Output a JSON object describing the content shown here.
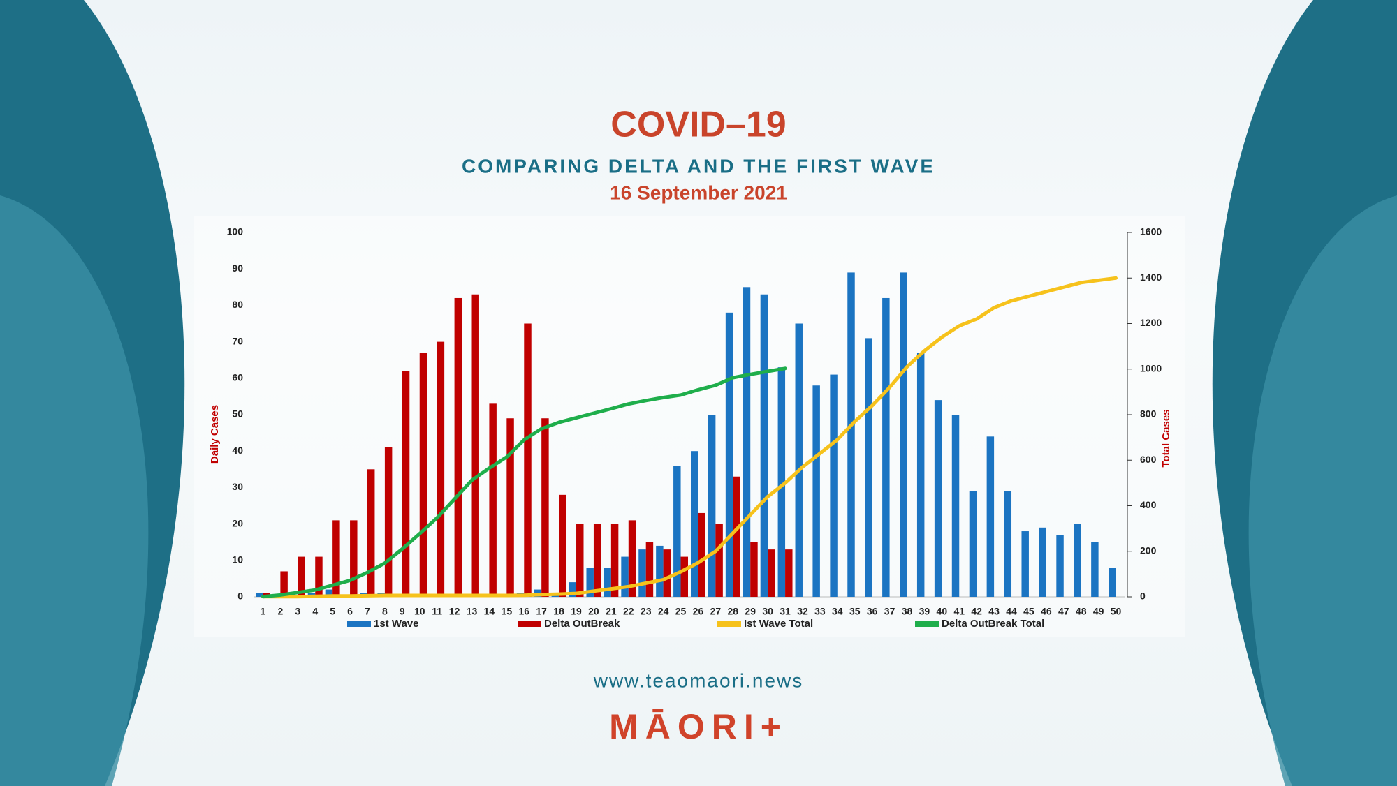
{
  "chart_data": {
    "type": "bar",
    "title": "COVID–19",
    "subtitle": "COMPARING DELTA AND THE FIRST WAVE",
    "date": "16 September 2021",
    "ylabel": "Daily Cases",
    "y2label": "Total Cases",
    "categories": [
      "1",
      "2",
      "3",
      "4",
      "5",
      "6",
      "7",
      "8",
      "9",
      "10",
      "11",
      "12",
      "13",
      "14",
      "15",
      "16",
      "17",
      "18",
      "19",
      "20",
      "21",
      "22",
      "23",
      "24",
      "25",
      "26",
      "27",
      "28",
      "29",
      "30",
      "31",
      "32",
      "33",
      "34",
      "35",
      "36",
      "37",
      "38",
      "39",
      "40",
      "41",
      "42",
      "43",
      "44",
      "45",
      "46",
      "47",
      "48",
      "49",
      "50"
    ],
    "ylim": [
      0,
      100
    ],
    "yticks": [
      0,
      10,
      20,
      30,
      40,
      50,
      60,
      70,
      80,
      90,
      100
    ],
    "y2lim": [
      0,
      1600
    ],
    "y2ticks": [
      0,
      200,
      400,
      600,
      800,
      1000,
      1200,
      1400,
      1600
    ],
    "grid": false,
    "legend": "bottom",
    "series": [
      {
        "name": "1st Wave",
        "type": "bar",
        "color": "#1b74c2",
        "values": [
          1,
          0,
          0,
          1,
          2,
          0,
          1,
          1,
          0,
          0,
          0,
          0,
          0,
          0,
          0,
          1,
          2,
          1,
          4,
          8,
          8,
          11,
          13,
          14,
          36,
          40,
          50,
          78,
          85,
          83,
          63,
          75,
          58,
          61,
          89,
          71,
          82,
          89,
          67,
          54,
          50,
          29,
          44,
          29,
          18,
          19,
          17,
          20,
          15,
          8
        ]
      },
      {
        "name": "Delta OutBreak",
        "type": "bar",
        "color": "#c00000",
        "values": [
          1,
          7,
          11,
          11,
          21,
          21,
          35,
          41,
          62,
          67,
          70,
          82,
          83,
          53,
          49,
          75,
          49,
          28,
          20,
          20,
          20,
          21,
          15,
          13,
          11,
          23,
          20,
          33,
          15,
          13,
          13,
          null,
          null,
          null,
          null,
          null,
          null,
          null,
          null,
          null,
          null,
          null,
          null,
          null,
          null,
          null,
          null,
          null,
          null,
          null
        ]
      },
      {
        "name": "Ist Wave Total",
        "type": "line",
        "axis": "y2",
        "color": "#f6c21c",
        "values": [
          1,
          1,
          1,
          2,
          4,
          4,
          5,
          6,
          6,
          6,
          6,
          6,
          6,
          6,
          6,
          7,
          10,
          12,
          15,
          25,
          35,
          45,
          60,
          75,
          110,
          150,
          200,
          280,
          360,
          440,
          500,
          570,
          630,
          690,
          770,
          840,
          920,
          1010,
          1080,
          1140,
          1190,
          1220,
          1270,
          1300,
          1320,
          1340,
          1360,
          1380,
          1390,
          1400
        ]
      },
      {
        "name": "Delta OutBreak Total",
        "type": "line",
        "axis": "y2",
        "color": "#1fae4b",
        "values": [
          1,
          8,
          19,
          30,
          51,
          72,
          107,
          148,
          210,
          277,
          347,
          429,
          512,
          565,
          614,
          689,
          738,
          766,
          786,
          806,
          826,
          847,
          862,
          875,
          886,
          909,
          929,
          962,
          977,
          990,
          1003,
          null,
          null,
          null,
          null,
          null,
          null,
          null,
          null,
          null,
          null,
          null,
          null,
          null,
          null,
          null,
          null,
          null,
          null,
          null
        ]
      }
    ],
    "website": "www.teaomaori.news",
    "logo": "MĀORI+"
  }
}
